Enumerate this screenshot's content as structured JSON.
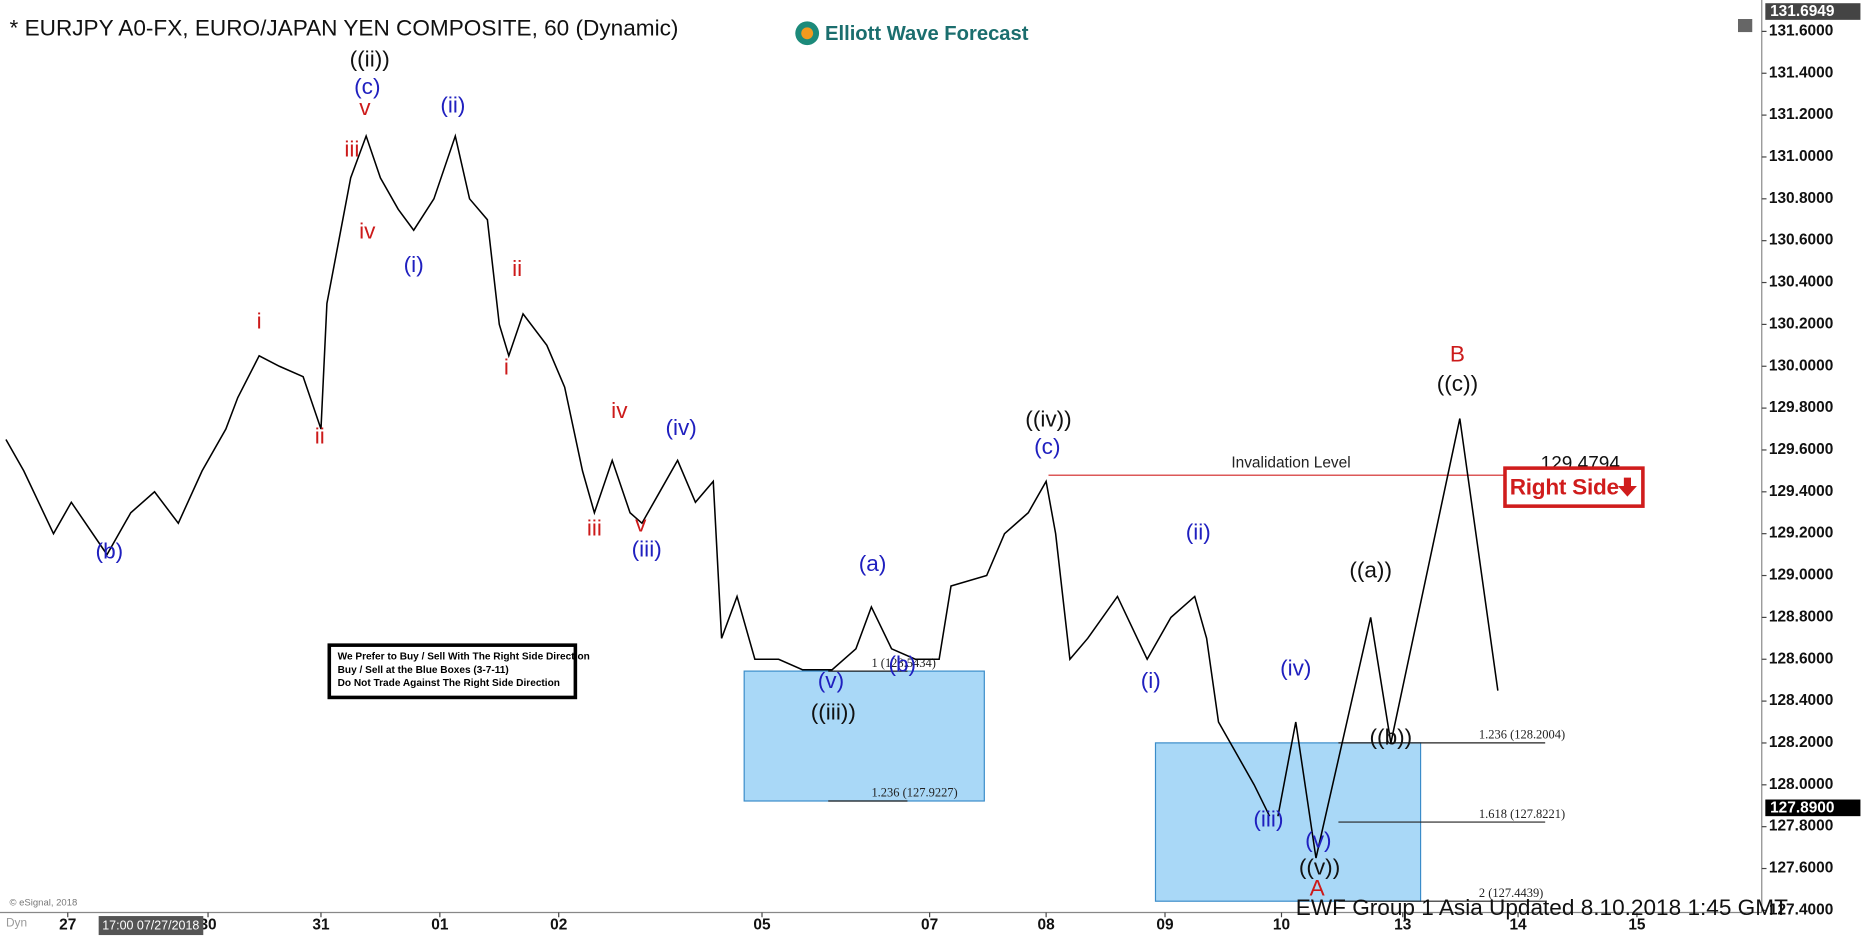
{
  "chart_data": {
    "type": "line",
    "title": "* EURJPY A0-FX, EURO/JAPAN YEN COMPOSITE, 60 (Dynamic)",
    "brand": "Elliott Wave Forecast",
    "footer": "EWF Group 1 Asia Updated 8.10.2018 1:45 GMT",
    "copyright": "© eSignal, 2018",
    "cursor_label": "17:00 07/27/2018",
    "corner_label": "Dyn",
    "note": [
      "We Prefer to Buy / Sell With The Right Side Direction",
      "Buy / Sell at the Blue Boxes (3-7-11)",
      "Do Not Trade Against The Right Side Direction"
    ],
    "right_side": "Right Side",
    "xlim": [
      -0.57,
      14.23
    ],
    "ylim": [
      127.39,
      131.75
    ],
    "xticks": [
      {
        "value": 0,
        "label": "27"
      },
      {
        "value": 1.18,
        "label": "30"
      },
      {
        "value": 2.13,
        "label": "31"
      },
      {
        "value": 3.13,
        "label": "01"
      },
      {
        "value": 4.13,
        "label": "02"
      },
      {
        "value": 5.84,
        "label": "05"
      },
      {
        "value": 7.25,
        "label": "07"
      },
      {
        "value": 8.23,
        "label": "08"
      },
      {
        "value": 9.23,
        "label": "09"
      },
      {
        "value": 10.21,
        "label": "10"
      },
      {
        "value": 11.23,
        "label": "13"
      },
      {
        "value": 12.2,
        "label": "14"
      },
      {
        "value": 13.2,
        "label": "15"
      }
    ],
    "yticks": [
      {
        "value": 127.4,
        "label": "127.4000"
      },
      {
        "value": 127.6,
        "label": "127.6000"
      },
      {
        "value": 127.8,
        "label": "127.8000"
      },
      {
        "value": 128,
        "label": "128.0000"
      },
      {
        "value": 128.2,
        "label": "128.2000"
      },
      {
        "value": 128.4,
        "label": "128.4000"
      },
      {
        "value": 128.6,
        "label": "128.6000"
      },
      {
        "value": 128.8,
        "label": "128.8000"
      },
      {
        "value": 129,
        "label": "129.0000"
      },
      {
        "value": 129.2,
        "label": "129.2000"
      },
      {
        "value": 129.4,
        "label": "129.4000"
      },
      {
        "value": 129.6,
        "label": "129.6000"
      },
      {
        "value": 129.8,
        "label": "129.8000"
      },
      {
        "value": 130,
        "label": "130.0000"
      },
      {
        "value": 130.2,
        "label": "130.2000"
      },
      {
        "value": 130.4,
        "label": "130.4000"
      },
      {
        "value": 130.6,
        "label": "130.6000"
      },
      {
        "value": 130.8,
        "label": "130.8000"
      },
      {
        "value": 131,
        "label": "131.0000"
      },
      {
        "value": 131.2,
        "label": "131.2000"
      },
      {
        "value": 131.4,
        "label": "131.4000"
      },
      {
        "value": 131.6,
        "label": "131.6000"
      }
    ],
    "price_markers": [
      {
        "value": 131.6949,
        "color": "#444"
      },
      {
        "value": 127.89,
        "label": "127.8900",
        "color": "#000"
      }
    ],
    "series": [
      {
        "color": "#000000",
        "x": [
          -0.52,
          -0.37,
          -0.12,
          0.03,
          0.33,
          0.53,
          0.73,
          0.93,
          1.13,
          1.33,
          1.43,
          1.61,
          1.78,
          1.98,
          2.13,
          2.18,
          2.28,
          2.38,
          2.51,
          2.63,
          2.78,
          2.91,
          3.08,
          3.26,
          3.38,
          3.53,
          3.63,
          3.71,
          3.83,
          4.03,
          4.18,
          4.33,
          4.43,
          4.58,
          4.73,
          4.83,
          4.98,
          5.13,
          5.28,
          5.43,
          5.5,
          5.63,
          5.78,
          5.98,
          6.18,
          6.43,
          6.63,
          6.76,
          6.93,
          7.13,
          7.33,
          7.43,
          7.73,
          7.88,
          8.08,
          8.23,
          8.31,
          8.43,
          8.58,
          8.83,
          9.08,
          9.28,
          9.48,
          9.58,
          9.68,
          9.83,
          9.98,
          10.11
        ],
        "values": [
          129.65,
          129.5,
          129.2,
          129.35,
          129.1,
          129.3,
          129.4,
          129.25,
          129.5,
          129.7,
          129.85,
          130.05,
          130.0,
          129.95,
          129.7,
          130.3,
          130.6,
          130.9,
          131.1,
          130.9,
          130.75,
          130.65,
          130.8,
          131.1,
          130.8,
          130.7,
          130.2,
          130.05,
          130.25,
          130.1,
          129.9,
          129.5,
          129.3,
          129.55,
          129.3,
          129.25,
          129.4,
          129.55,
          129.35,
          129.45,
          128.7,
          128.9,
          128.6,
          128.6,
          128.55,
          128.55,
          128.65,
          128.85,
          128.65,
          128.6,
          128.6,
          128.95,
          129.0,
          129.2,
          129.3,
          129.45,
          129.2,
          128.6,
          128.7,
          128.9,
          128.6,
          128.8,
          128.9,
          128.7,
          128.3,
          128.15,
          128.0,
          127.85
        ]
      },
      {
        "color": "#000000",
        "x": [
          10.18,
          10.33,
          10.5,
          10.96,
          11.13,
          11.71,
          12.03
        ],
        "values": [
          127.85,
          128.3,
          127.65,
          128.8,
          128.2,
          129.75,
          128.45
        ]
      }
    ],
    "zones": [
      {
        "x": [
          5.69,
          7.71
        ],
        "color": "#a9d8f7",
        "levels": [
          {
            "value": 128.5434,
            "label": "1 (128.5434)"
          },
          {
            "value": 127.9227,
            "label": "1.236 (127.9227)"
          }
        ]
      },
      {
        "x": [
          9.15,
          11.38
        ],
        "color": "#a9d8f7",
        "levels": [
          {
            "value": 128.2004,
            "label": "1.236 (128.2004)"
          },
          {
            "value": 127.8221,
            "label": "1.618 (127.8221)"
          },
          {
            "value": 127.4439,
            "label": "2 (127.4439)"
          }
        ]
      }
    ],
    "invalidation": {
      "value": 129.4794,
      "label": "Invalidation Level",
      "x": [
        8.25,
        12.33
      ],
      "color": "#d02020"
    },
    "annotations": [
      {
        "text": "((ii))",
        "x": 2.54,
        "y": 131.46,
        "color": "#111111"
      },
      {
        "text": "(c)",
        "x": 2.52,
        "y": 131.33,
        "color": "#1f1fbf"
      },
      {
        "text": "v",
        "x": 2.5,
        "y": 131.23,
        "color": "#cc1a1a"
      },
      {
        "text": "iii",
        "x": 2.39,
        "y": 131.03,
        "color": "#cc1a1a"
      },
      {
        "text": "iv",
        "x": 2.52,
        "y": 130.64,
        "color": "#cc1a1a"
      },
      {
        "text": "(ii)",
        "x": 3.24,
        "y": 131.24,
        "color": "#1f1fbf"
      },
      {
        "text": "(i)",
        "x": 2.91,
        "y": 130.48,
        "color": "#1f1fbf"
      },
      {
        "text": "ii",
        "x": 3.78,
        "y": 130.46,
        "color": "#cc1a1a"
      },
      {
        "text": "i",
        "x": 1.61,
        "y": 130.21,
        "color": "#cc1a1a"
      },
      {
        "text": "i",
        "x": 3.69,
        "y": 129.99,
        "color": "#cc1a1a"
      },
      {
        "text": "ii",
        "x": 2.12,
        "y": 129.66,
        "color": "#cc1a1a"
      },
      {
        "text": "iv",
        "x": 4.64,
        "y": 129.78,
        "color": "#cc1a1a"
      },
      {
        "text": "(iv)",
        "x": 5.16,
        "y": 129.7,
        "color": "#1f1fbf"
      },
      {
        "text": "iii",
        "x": 4.43,
        "y": 129.22,
        "color": "#cc1a1a"
      },
      {
        "text": "v",
        "x": 4.82,
        "y": 129.24,
        "color": "#cc1a1a"
      },
      {
        "text": "(iii)",
        "x": 4.87,
        "y": 129.12,
        "color": "#1f1fbf"
      },
      {
        "text": "(b)",
        "x": 0.35,
        "y": 129.11,
        "color": "#1f1fbf"
      },
      {
        "text": "(a)",
        "x": 6.77,
        "y": 129.05,
        "color": "#1f1fbf"
      },
      {
        "text": "(b)",
        "x": 7.02,
        "y": 128.57,
        "color": "#1f1fbf"
      },
      {
        "text": "(v)",
        "x": 6.42,
        "y": 128.49,
        "color": "#1f1fbf"
      },
      {
        "text": "((iii))",
        "x": 6.44,
        "y": 128.34,
        "color": "#111111"
      },
      {
        "text": "((iv))",
        "x": 8.25,
        "y": 129.74,
        "color": "#111111"
      },
      {
        "text": "(c)",
        "x": 8.24,
        "y": 129.61,
        "color": "#1f1fbf"
      },
      {
        "text": "(ii)",
        "x": 9.51,
        "y": 129.2,
        "color": "#1f1fbf"
      },
      {
        "text": "(i)",
        "x": 9.11,
        "y": 128.49,
        "color": "#1f1fbf"
      },
      {
        "text": "(iv)",
        "x": 10.33,
        "y": 128.55,
        "color": "#1f1fbf"
      },
      {
        "text": "((a))",
        "x": 10.96,
        "y": 129.02,
        "color": "#111111"
      },
      {
        "text": "((b))",
        "x": 11.13,
        "y": 128.22,
        "color": "#111111"
      },
      {
        "text": "B",
        "x": 11.69,
        "y": 130.05,
        "color": "#cc1a1a"
      },
      {
        "text": "((c))",
        "x": 11.69,
        "y": 129.91,
        "color": "#111111"
      },
      {
        "text": "(iii)",
        "x": 10.1,
        "y": 127.83,
        "color": "#1f1fbf"
      },
      {
        "text": "(v)",
        "x": 10.52,
        "y": 127.73,
        "color": "#1f1fbf"
      },
      {
        "text": "((v))",
        "x": 10.53,
        "y": 127.6,
        "color": "#111111"
      },
      {
        "text": "A",
        "x": 10.51,
        "y": 127.5,
        "color": "#cc1a1a"
      }
    ]
  }
}
